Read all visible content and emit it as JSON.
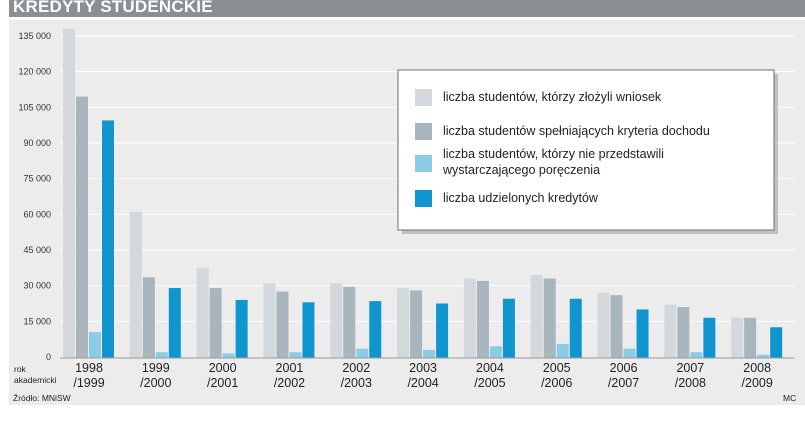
{
  "header": {
    "title": "KREDYTY STUDENCKIE"
  },
  "footer": {
    "source": "Źródło: MNiSW",
    "author": "MC"
  },
  "axis_caption": [
    "rok",
    "akademicki"
  ],
  "colors": {
    "header_bg": "#8a8f94",
    "panel_bg": "#ececec",
    "grid": "#ffffff",
    "series": [
      "#d3d8dc",
      "#a9b5bc",
      "#8ccbe6",
      "#0f96cf"
    ]
  },
  "chart_data": {
    "type": "bar",
    "title": "KREDYTY STUDENCKIE",
    "xlabel": "rok akademicki",
    "ylabel": "",
    "ylim": [
      0,
      135000
    ],
    "yticks": [
      0,
      15000,
      30000,
      45000,
      60000,
      75000,
      90000,
      105000,
      120000,
      135000
    ],
    "ytick_labels": [
      "0",
      "15 000",
      "30 000",
      "45 000",
      "60 000",
      "75 000",
      "90 000",
      "105 000",
      "120 000",
      "135 000"
    ],
    "grid": true,
    "legend_position": "top-right",
    "categories": [
      [
        "1998",
        "/1999"
      ],
      [
        "1999",
        "/2000"
      ],
      [
        "2000",
        "/2001"
      ],
      [
        "2001",
        "/2002"
      ],
      [
        "2002",
        "/2003"
      ],
      [
        "2003",
        "/2004"
      ],
      [
        "2004",
        "/2005"
      ],
      [
        "2005",
        "/2006"
      ],
      [
        "2006",
        "/2007"
      ],
      [
        "2007",
        "/2008"
      ],
      [
        "2008",
        "/2009"
      ]
    ],
    "series": [
      {
        "name": [
          "liczba studentów, którzy złożyli wniosek"
        ],
        "values": [
          138000,
          61000,
          37500,
          31000,
          31000,
          29000,
          33000,
          34500,
          27000,
          22000,
          16500
        ]
      },
      {
        "name": [
          "liczba studentów spełniających kryteria dochodu"
        ],
        "values": [
          109500,
          33500,
          29000,
          27500,
          29500,
          28000,
          32000,
          33000,
          26000,
          21000,
          16500
        ]
      },
      {
        "name": [
          "liczba studentów, którzy nie przedstawili",
          "wystarczającego poręczenia"
        ],
        "values": [
          10500,
          2000,
          1500,
          2000,
          3500,
          3000,
          4500,
          5500,
          3500,
          2000,
          1000
        ]
      },
      {
        "name": [
          "liczba udzielonych kredytów"
        ],
        "values": [
          99500,
          29000,
          24000,
          23000,
          23500,
          22500,
          24500,
          24500,
          20000,
          16500,
          12500
        ]
      }
    ]
  }
}
